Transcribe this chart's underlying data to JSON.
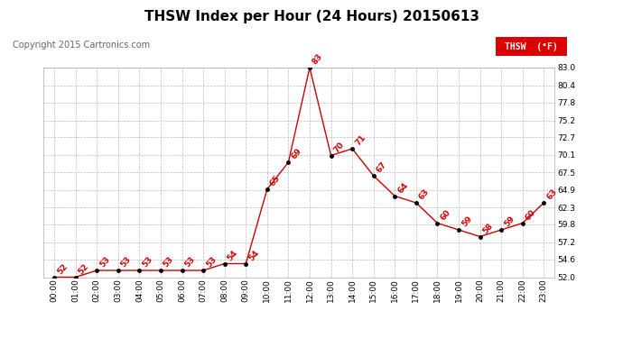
{
  "title": "THSW Index per Hour (24 Hours) 20150613",
  "copyright": "Copyright 2015 Cartronics.com",
  "legend_label": "THSW  (°F)",
  "hours": [
    0,
    1,
    2,
    3,
    4,
    5,
    6,
    7,
    8,
    9,
    10,
    11,
    12,
    13,
    14,
    15,
    16,
    17,
    18,
    19,
    20,
    21,
    22,
    23
  ],
  "values": [
    52,
    52,
    53,
    53,
    53,
    53,
    53,
    53,
    54,
    54,
    65,
    69,
    83,
    70,
    71,
    67,
    64,
    63,
    60,
    59,
    58,
    59,
    60,
    63
  ],
  "yticks": [
    52.0,
    54.6,
    57.2,
    59.8,
    62.3,
    64.9,
    67.5,
    70.1,
    72.7,
    75.2,
    77.8,
    80.4,
    83.0
  ],
  "ylim_min": 52.0,
  "ylim_max": 83.0,
  "line_color": "#cc0000",
  "marker_color": "#000000",
  "background_color": "#ffffff",
  "grid_color": "#bbbbbb",
  "title_fontsize": 11,
  "copyright_fontsize": 7,
  "label_fontsize": 6.5,
  "tick_fontsize": 6.5,
  "legend_bg": "#dd0000",
  "legend_text_color": "#ffffff"
}
